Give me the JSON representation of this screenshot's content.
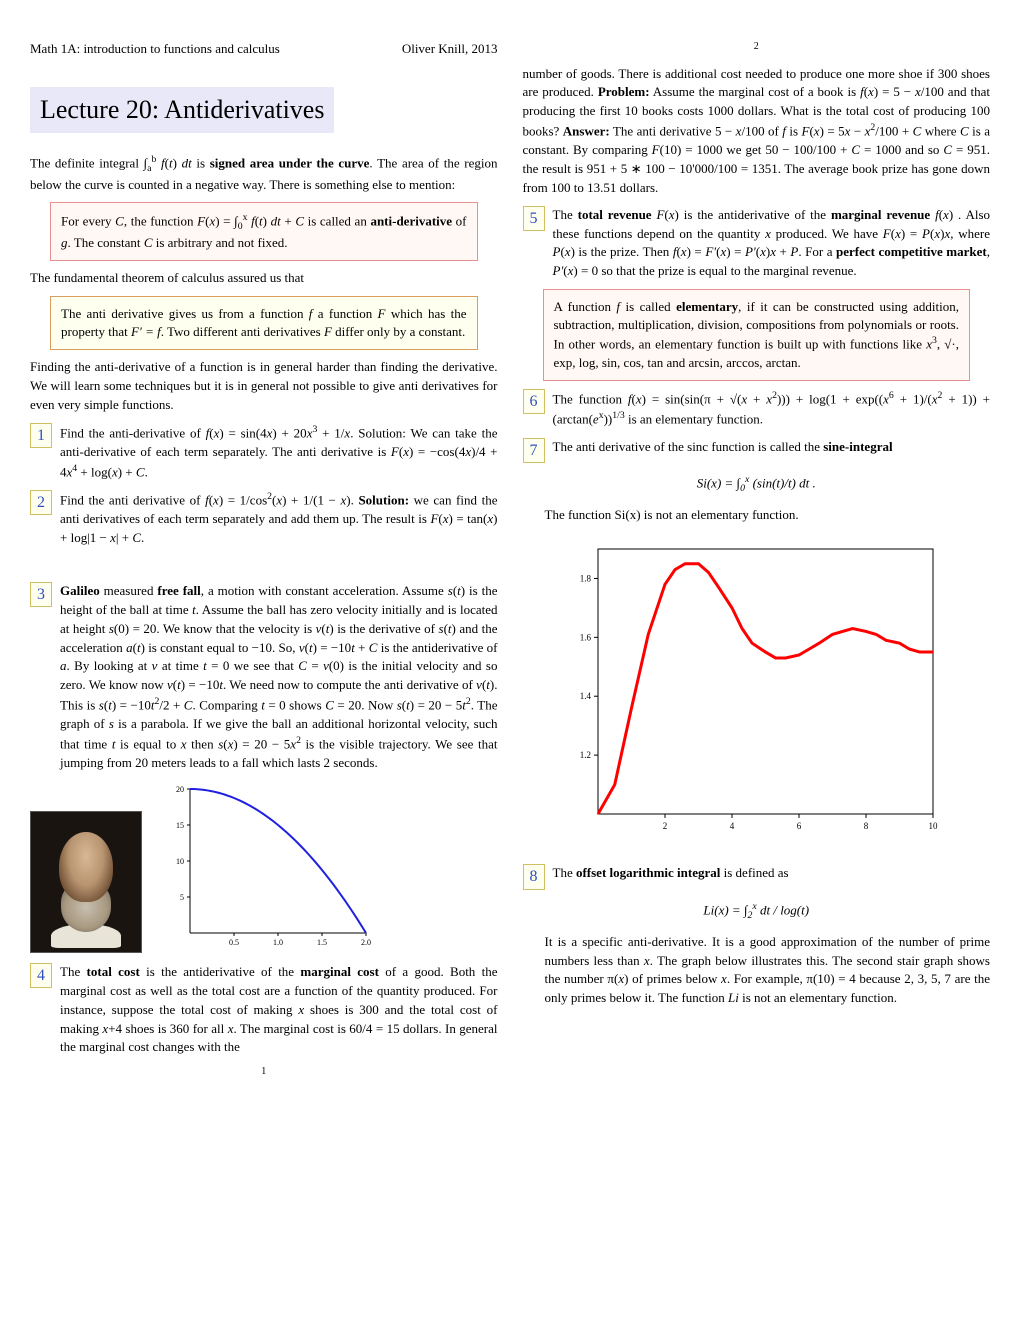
{
  "header": {
    "course": "Math 1A: introduction to functions and calculus",
    "author": "Oliver Knill, 2013"
  },
  "title": "Lecture 20: Antiderivatives",
  "intro_html": "The definite integral ∫<sub>a</sub><sup>b</sup> <span class='ital'>f</span>(<span class='ital'>t</span>) <span class='ital'>dt</span> is <span class='bold'>signed area under the curve</span>. The area of the region below the curve is counted in a negative way. There is something else to mention:",
  "box1_html": "For every <span class='ital'>C</span>, the function <span class='ital'>F</span>(<span class='ital'>x</span>) = ∫<sub>0</sub><sup>x</sup> <span class='ital'>f</span>(<span class='ital'>t</span>) <span class='ital'>dt</span> + <span class='ital'>C</span> is called an <span class='bold'>anti-derivative</span> of <span class='ital'>g</span>. The constant <span class='ital'>C</span> is arbitrary and not fixed.",
  "mid1": "The fundamental theorem of calculus assured us that",
  "box2_html": "The anti derivative gives us from a function <span class='ital'>f</span> a function <span class='ital'>F</span> which has the property that <span class='ital'>F′ = f</span>. Two different anti derivatives <span class='ital'>F</span> differ only by a constant.",
  "mid2": "Finding the anti-derivative of a function is in general harder than finding the derivative. We will learn some techniques but it is in general not possible to give anti derivatives for even very simple functions.",
  "examples": {
    "1": "Find the anti-derivative of <span class='ital'>f</span>(<span class='ital'>x</span>) = sin(4<span class='ital'>x</span>) + 20<span class='ital'>x</span><sup>3</sup> + 1/<span class='ital'>x</span>. Solution: We can take the anti-derivative of each term separately. The anti derivative is <span class='ital'>F</span>(<span class='ital'>x</span>) = −cos(4<span class='ital'>x</span>)/4 + 4<span class='ital'>x</span><sup>4</sup> + log(<span class='ital'>x</span>) + <span class='ital'>C</span>.",
    "2": "Find the anti derivative of <span class='ital'>f</span>(<span class='ital'>x</span>) = 1/cos<sup>2</sup>(<span class='ital'>x</span>) + 1/(1 − <span class='ital'>x</span>). <span class='bold'>Solution:</span> we can find the anti derivatives of each term separately and add them up. The result is <span class='ital'>F</span>(<span class='ital'>x</span>) = tan(<span class='ital'>x</span>) + log|1 − <span class='ital'>x</span>| + <span class='ital'>C</span>.",
    "3": "<span class='bold'>Galileo</span> measured <span class='bold'>free fall</span>, a motion with constant acceleration. Assume <span class='ital'>s</span>(<span class='ital'>t</span>) is the height of the ball at time <span class='ital'>t</span>. Assume the ball has zero velocity initially and is located at height <span class='ital'>s</span>(0) = 20. We know that the velocity is <span class='ital'>v</span>(<span class='ital'>t</span>) is the derivative of <span class='ital'>s</span>(<span class='ital'>t</span>) and the acceleration <span class='ital'>a</span>(<span class='ital'>t</span>) is constant equal to −10. So, <span class='ital'>v</span>(<span class='ital'>t</span>) = −10<span class='ital'>t</span> + <span class='ital'>C</span> is the antiderivative of <span class='ital'>a</span>. By looking at <span class='ital'>v</span> at time <span class='ital'>t</span> = 0 we see that <span class='ital'>C</span> = <span class='ital'>v</span>(0) is the initial velocity and so zero. We know now <span class='ital'>v</span>(<span class='ital'>t</span>) = −10<span class='ital'>t</span>. We need now to compute the anti derivative of <span class='ital'>v</span>(<span class='ital'>t</span>). This is <span class='ital'>s</span>(<span class='ital'>t</span>) = −10<span class='ital'>t</span><sup>2</sup>/2 + <span class='ital'>C</span>. Comparing <span class='ital'>t</span> = 0 shows <span class='ital'>C</span> = 20. Now <span class='ital'>s</span>(<span class='ital'>t</span>) = 20 − 5<span class='ital'>t</span><sup>2</sup>. The graph of <span class='ital'>s</span> is a parabola. If we give the ball an additional horizontal velocity, such that time <span class='ital'>t</span> is equal to <span class='ital'>x</span> then <span class='ital'>s</span>(<span class='ital'>x</span>) = 20 − 5<span class='ital'>x</span><sup>2</sup> is the visible trajectory. We see that jumping from 20 meters leads to a fall which lasts 2 seconds.",
    "4": "The <span class='bold'>total cost</span> is the antiderivative of the <span class='bold'>marginal cost</span> of a good. Both the marginal cost as well as the total cost are a function of the quantity produced. For instance, suppose the total cost of making <span class='ital'>x</span> shoes is 300 and the total cost of making <span class='ital'>x</span>+4 shoes is 360 for all <span class='ital'>x</span>. The marginal cost is 60/4 = 15 dollars. In general the marginal cost changes with the",
    "5": "The <span class='bold'>total revenue</span> <span class='ital'>F</span>(<span class='ital'>x</span>) is the antiderivative of the <span class='bold'>marginal revenue</span> <span class='ital'>f</span>(<span class='ital'>x</span>) . Also these functions depend on the quantity <span class='ital'>x</span> produced. We have <span class='ital'>F</span>(<span class='ital'>x</span>) = <span class='ital'>P</span>(<span class='ital'>x</span>)<span class='ital'>x</span>, where <span class='ital'>P</span>(<span class='ital'>x</span>) is the prize. Then <span class='ital'>f</span>(<span class='ital'>x</span>) = <span class='ital'>F′</span>(<span class='ital'>x</span>) = <span class='ital'>P′</span>(<span class='ital'>x</span>)<span class='ital'>x</span> + <span class='ital'>P</span>. For a <span class='bold'>perfect competitive market</span>, <span class='ital'>P′</span>(<span class='ital'>x</span>) = 0 so that the prize is equal to the marginal revenue.",
    "6": "The function <span class='ital'>f</span>(<span class='ital'>x</span>) = sin(sin(π + √(<span class='ital'>x</span> + <span class='ital'>x</span><sup>2</sup>))) + log(1 + exp((<span class='ital'>x</span><sup>6</sup> + 1)/(<span class='ital'>x</span><sup>2</sup> + 1)) + (arctan(<span class='ital'>e</span><sup>x</sup>))<sup>1/3</sup> is an elementary function.",
    "7": "The anti derivative of the sinc function is called the <span class='bold'>sine-integral</span>",
    "8": "The <span class='bold'>offset logarithmic integral</span> is defined as"
  },
  "col2_top": "number of goods. There is additional cost needed to produce one more shoe if 300 shoes are produced. <span class='bold'>Problem:</span> Assume the marginal cost of a book is <span class='ital'>f</span>(<span class='ital'>x</span>) = 5 − <span class='ital'>x</span>/100 and that producing the first 10 books costs 1000 dollars. What is the total cost of producing 100 books? <span class='bold'>Answer:</span> The anti derivative 5 − <span class='ital'>x</span>/100 of <span class='ital'>f</span> is <span class='ital'>F</span>(<span class='ital'>x</span>) = 5<span class='ital'>x</span> − <span class='ital'>x</span><sup>2</sup>/100 + <span class='ital'>C</span> where <span class='ital'>C</span> is a constant. By comparing <span class='ital'>F</span>(10) = 1000 we get 50 − 100/100 + <span class='ital'>C</span> = 1000 and so <span class='ital'>C</span> = 951. the result is 951 + 5 ∗ 100 − 10'000/100 = 1351. The average book prize has gone down from 100 to 13.51 dollars.",
  "box3_html": "A function <span class='ital'>f</span> is called <span class='bold'>elementary</span>, if it can be constructed using addition, subtraction, multiplication, division, compositions from polynomials or roots. In other words, an elementary function is built up with functions like <span class='ital'>x</span><sup>3</sup>, √·, exp, log, sin, cos, tan and arcsin, arccos, arctan.",
  "si_formula": "Si(x) = ∫<sub>0</sub><sup>x</sup> (sin(t)/t) dt .",
  "si_note": "The function Si(x) is not an elementary function.",
  "li_formula": "Li(x) = ∫<sub>2</sub><sup>x</sup> dt / log(t)",
  "li_text": "It is a specific anti-derivative. It is a good approximation of the number of prime numbers less than <span class='ital'>x</span>. The graph below illustrates this. The second stair graph shows the number π(<span class='ital'>x</span>) of primes below <span class='ital'>x</span>. For example, π(10) = 4 because 2, 3, 5, 7 are the only primes below it. The function <span class='ital'>Li</span> is not an elementary function.",
  "page_left_num": "1",
  "page_center_num": "2",
  "parabola_chart": {
    "type": "line",
    "xlim": [
      0,
      2
    ],
    "ylim": [
      0,
      20
    ],
    "xticks": [
      0.5,
      1.0,
      1.5,
      2.0
    ],
    "yticks": [
      5,
      10,
      15,
      20
    ],
    "line_color": "#2020e0",
    "line_width": 2,
    "axis_color": "#000000",
    "background": "#ffffff",
    "formula": "y = 20 - 5*x^2"
  },
  "sinc_chart": {
    "type": "line",
    "xlim": [
      0,
      10
    ],
    "ylim": [
      1.0,
      1.9
    ],
    "xticks": [
      2,
      4,
      6,
      8,
      10
    ],
    "yticks": [
      1.2,
      1.4,
      1.6,
      1.8
    ],
    "line_color": "#ff0000",
    "line_width": 3,
    "axis_color": "#000000",
    "background": "#ffffff",
    "tick_fontsize": 9,
    "points": [
      [
        0.0,
        1.0
      ],
      [
        0.2,
        1.04
      ],
      [
        0.5,
        1.1
      ],
      [
        1.0,
        1.36
      ],
      [
        1.5,
        1.61
      ],
      [
        2.0,
        1.78
      ],
      [
        2.3,
        1.83
      ],
      [
        2.6,
        1.85
      ],
      [
        3.0,
        1.85
      ],
      [
        3.3,
        1.82
      ],
      [
        3.6,
        1.77
      ],
      [
        4.0,
        1.7
      ],
      [
        4.3,
        1.63
      ],
      [
        4.6,
        1.58
      ],
      [
        5.0,
        1.55
      ],
      [
        5.3,
        1.53
      ],
      [
        5.6,
        1.53
      ],
      [
        6.0,
        1.54
      ],
      [
        6.3,
        1.56
      ],
      [
        6.6,
        1.58
      ],
      [
        7.0,
        1.61
      ],
      [
        7.3,
        1.62
      ],
      [
        7.6,
        1.63
      ],
      [
        8.0,
        1.62
      ],
      [
        8.3,
        1.61
      ],
      [
        8.6,
        1.59
      ],
      [
        9.0,
        1.58
      ],
      [
        9.3,
        1.56
      ],
      [
        9.6,
        1.55
      ],
      [
        10.0,
        1.55
      ]
    ]
  }
}
